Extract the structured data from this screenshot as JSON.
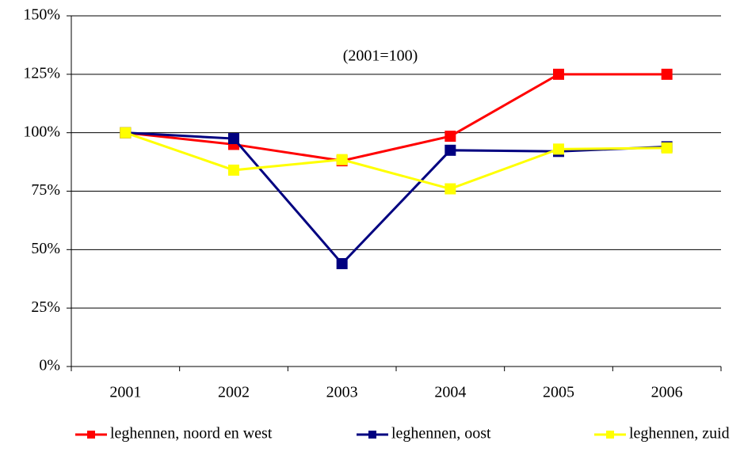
{
  "chart_data": {
    "type": "line",
    "annotation": "(2001=100)",
    "categories": [
      "2001",
      "2002",
      "2003",
      "2004",
      "2005",
      "2006"
    ],
    "series": [
      {
        "name": "leghennen, noord en west",
        "color": "#ff0000",
        "values": [
          100,
          95,
          88,
          98.5,
          125,
          125
        ]
      },
      {
        "name": "leghennen, oost",
        "color": "#000080",
        "values": [
          100,
          97.5,
          44,
          92.5,
          92,
          94
        ]
      },
      {
        "name": "leghennen, zuid",
        "color": "#ffff00",
        "values": [
          100,
          84,
          88.5,
          76,
          93,
          93.5
        ]
      }
    ],
    "ylim": [
      0,
      150
    ],
    "yticks": [
      {
        "value": 0,
        "label": "0%"
      },
      {
        "value": 25,
        "label": "25%"
      },
      {
        "value": 50,
        "label": "50%"
      },
      {
        "value": 75,
        "label": "75%"
      },
      {
        "value": 100,
        "label": "100%"
      },
      {
        "value": 125,
        "label": "125%"
      },
      {
        "value": 150,
        "label": "150%"
      }
    ],
    "grid": true,
    "legend": "bottom"
  }
}
